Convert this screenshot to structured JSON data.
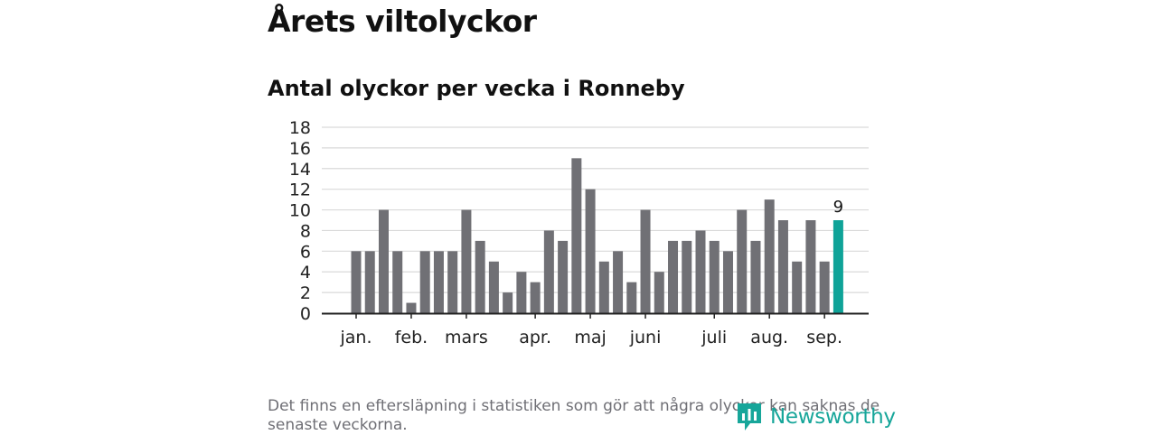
{
  "header": {
    "title": "Årets viltolyckor",
    "subtitle": "Antal olyckor per vecka i Ronneby"
  },
  "chart_data": {
    "type": "bar",
    "ylim": [
      0,
      18
    ],
    "yticks": [
      0,
      2,
      4,
      6,
      8,
      10,
      12,
      14,
      16,
      18
    ],
    "grid": true,
    "values": [
      6,
      6,
      10,
      6,
      1,
      6,
      6,
      6,
      10,
      7,
      5,
      2,
      4,
      3,
      8,
      7,
      15,
      12,
      5,
      6,
      3,
      10,
      4,
      7,
      7,
      8,
      7,
      6,
      10,
      7,
      11,
      9,
      5,
      9,
      5,
      9
    ],
    "month_labels": [
      {
        "label": "jan.",
        "week_index": 0
      },
      {
        "label": "feb.",
        "week_index": 4
      },
      {
        "label": "mars",
        "week_index": 8
      },
      {
        "label": "apr.",
        "week_index": 13
      },
      {
        "label": "maj",
        "week_index": 17
      },
      {
        "label": "juni",
        "week_index": 21
      },
      {
        "label": "juli",
        "week_index": 26
      },
      {
        "label": "aug.",
        "week_index": 30
      },
      {
        "label": "sep.",
        "week_index": 34
      }
    ],
    "highlight_index": 35,
    "highlight_label": "9",
    "colors": {
      "bar": "#707075",
      "highlight": "#0fa398",
      "grid": "#d9d9d9",
      "axis": "#222222"
    }
  },
  "footer": {
    "note": "Det finns en eftersläpning i statistiken som gör att några olyckor kan saknas de senaste veckorna.",
    "brand": "Newsworthy",
    "brand_color": "#17a69a",
    "brand_icon": "newsworthy-logo-icon"
  }
}
